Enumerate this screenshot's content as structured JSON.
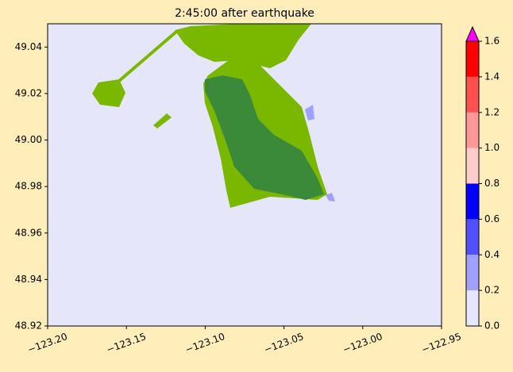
{
  "chart_data": {
    "type": "map",
    "title": "2:45:00 after earthquake",
    "background": "#e6e6fa",
    "xlim": [
      -123.2,
      -122.95
    ],
    "ylim": [
      48.92,
      49.05
    ],
    "xticks": [
      {
        "value": -123.2,
        "label": "−123.20"
      },
      {
        "value": -123.15,
        "label": "−123.15"
      },
      {
        "value": -123.1,
        "label": "−123.10"
      },
      {
        "value": -123.05,
        "label": "−123.05"
      },
      {
        "value": -123.0,
        "label": "−123.00"
      },
      {
        "value": -122.95,
        "label": "−122.95"
      }
    ],
    "yticks": [
      48.92,
      48.94,
      48.96,
      48.98,
      {
        "value": 49.0,
        "label": "49.00"
      },
      49.02,
      49.04
    ],
    "colorbar": {
      "ticks": [
        {
          "value": 0,
          "label": "0.0"
        },
        {
          "value": 0.2,
          "label": "0.2"
        },
        {
          "value": 0.4,
          "label": "0.4"
        },
        {
          "value": 0.6,
          "label": "0.6"
        },
        {
          "value": 0.8,
          "label": "0.8"
        },
        {
          "value": 1.0,
          "label": "1.0"
        },
        {
          "value": 1.2,
          "label": "1.2"
        },
        {
          "value": 1.4,
          "label": "1.4"
        },
        {
          "value": 1.6,
          "label": "1.6"
        }
      ],
      "colors": [
        "#e6e6ff",
        "#a0a0ff",
        "#5050ff",
        "#0000ff",
        "#ffcccc",
        "#ff9999",
        "#ff5050",
        "#ff0000"
      ],
      "extend_color": "#ff00ff"
    }
  }
}
